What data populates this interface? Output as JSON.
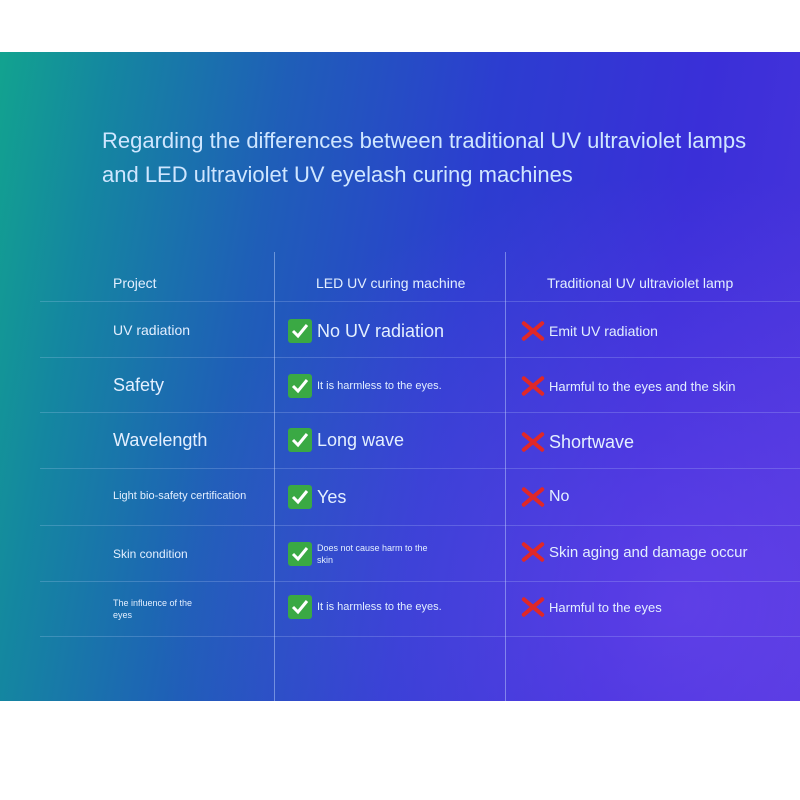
{
  "title": "Regarding the differences between traditional UV ultraviolet lamps and LED ultraviolet UV eyelash curing machines",
  "headers": {
    "project": "Project",
    "led": "LED UV curing machine",
    "traditional": "Traditional UV ultraviolet lamp"
  },
  "rows": [
    {
      "project": "UV radiation",
      "led": "No UV radiation",
      "traditional": "Emit UV radiation"
    },
    {
      "project": "Safety",
      "led": "It is harmless to the eyes.",
      "traditional": "Harmful to the eyes and the skin"
    },
    {
      "project": "Wavelength",
      "led": "Long wave",
      "traditional": "Shortwave"
    },
    {
      "project": "Light bio-safety certification",
      "led": "Yes",
      "traditional": "No"
    },
    {
      "project": "Skin condition",
      "led": "Does not cause harm to the skin",
      "traditional": "Skin aging and damage occur"
    },
    {
      "project": "The influence of the eyes",
      "led": "It is harmless to the eyes.",
      "traditional": "Harmful to the eyes"
    }
  ],
  "icons": {
    "led": "check-icon",
    "traditional": "cross-icon"
  },
  "colors": {
    "check": "#3aa944",
    "cross": "#e02828"
  }
}
